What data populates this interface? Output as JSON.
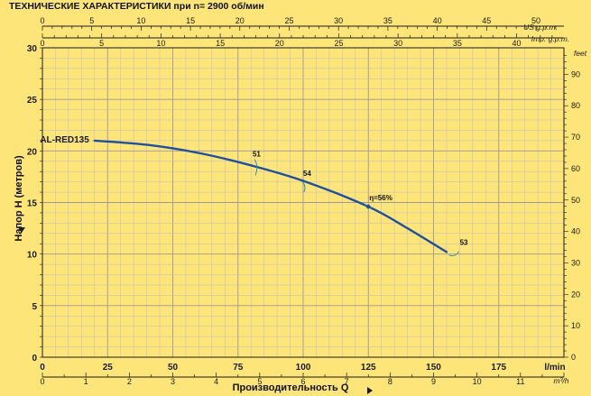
{
  "chart_data": {
    "type": "line",
    "title": "ТЕХНИЧЕСКИЕ ХАРАКТЕРИСТИКИ при n= 2900 об/мин",
    "xlabel": "Производительность Q",
    "ylabel": "Напор H (метров)",
    "x_unit": "l/min",
    "x2_unit": "m³/h",
    "top_unit_us": "US g.p.m.",
    "top_unit_imp": "Imp. g.p.m.",
    "y2_unit": "feet",
    "xlim": [
      0,
      200
    ],
    "ylim": [
      0,
      30
    ],
    "grid": true,
    "x_ticks": [
      "0",
      "25",
      "50",
      "75",
      "100",
      "125",
      "150",
      "175",
      "l/min"
    ],
    "x2_ticks": [
      "0",
      "1",
      "2",
      "3",
      "4",
      "5",
      "6",
      "7",
      "8",
      "9",
      "10",
      "11",
      "m³/h"
    ],
    "us_ticks": [
      "0",
      "5",
      "10",
      "15",
      "20",
      "25",
      "30",
      "35",
      "40",
      "45",
      "50"
    ],
    "imp_ticks": [
      "0",
      "5",
      "10",
      "15",
      "20",
      "25",
      "30",
      "35",
      "40"
    ],
    "y_ticks": [
      "0",
      "5",
      "10",
      "15",
      "20",
      "25",
      "30"
    ],
    "feet_ticks": [
      "0",
      "10",
      "20",
      "30",
      "40",
      "50",
      "60",
      "70",
      "80",
      "90"
    ],
    "series": [
      {
        "name": "AL-RED135",
        "x": [
          20,
          40,
          60,
          80,
          100,
          125,
          140,
          155
        ],
        "y": [
          21,
          20.6,
          19.8,
          18.6,
          17.1,
          14.6,
          12.5,
          10.2
        ]
      }
    ],
    "efficiency_labels": [
      {
        "text": "51",
        "x": 82,
        "y": 18.5
      },
      {
        "text": "54",
        "x": 101,
        "y": 16.8
      },
      {
        "text": "η=56%",
        "x": 125,
        "y": 14.6
      },
      {
        "text": "53",
        "x": 158,
        "y": 10
      }
    ]
  }
}
